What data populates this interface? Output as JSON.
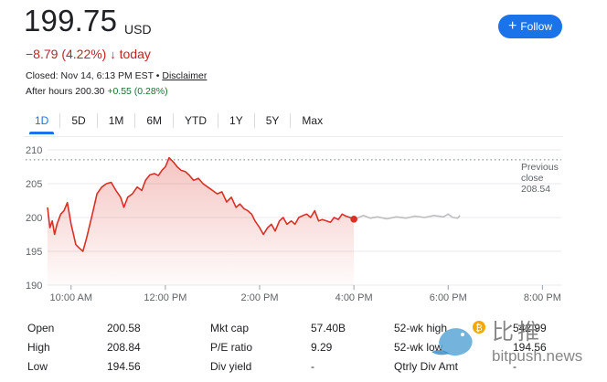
{
  "header": {
    "price": "199.75",
    "currency": "USD",
    "change": "−8.79 (4.22%)",
    "change_arrow": "↓",
    "change_period": "today",
    "closed_text": "Closed: Nov 14, 6:13 PM EST • ",
    "disclaimer": "Disclaimer",
    "after_hours_prefix": "After hours 200.30 ",
    "after_hours_change": "+0.55 (0.28%)",
    "follow_label": "Follow",
    "follow_icon": "plus-icon"
  },
  "tabs": [
    {
      "label": "1D",
      "active": true
    },
    {
      "label": "5D"
    },
    {
      "label": "1M"
    },
    {
      "label": "6M"
    },
    {
      "label": "YTD"
    },
    {
      "label": "1Y"
    },
    {
      "label": "5Y"
    },
    {
      "label": "Max"
    }
  ],
  "chart_data": {
    "type": "line",
    "ylim": [
      190,
      210
    ],
    "yticks": [
      "210",
      "205",
      "200",
      "195",
      "190"
    ],
    "xticks": [
      "10:00 AM",
      "12:00 PM",
      "2:00 PM",
      "4:00 PM",
      "6:00 PM",
      "8:00 PM"
    ],
    "previous_close": 208.54,
    "previous_close_label": [
      "Previous",
      "close",
      "208.54"
    ],
    "colors": {
      "regular": "#d93025",
      "after_hours": "#bdbdbd"
    },
    "series": [
      {
        "values": [
          [
            9.5,
            201.5
          ],
          [
            9.55,
            198.5
          ],
          [
            9.6,
            199.5
          ],
          [
            9.65,
            197.5
          ],
          [
            9.7,
            199.0
          ],
          [
            9.78,
            200.5
          ],
          [
            9.85,
            201.0
          ],
          [
            9.92,
            202.2
          ],
          [
            10.0,
            199.0
          ],
          [
            10.05,
            197.5
          ],
          [
            10.1,
            196.0
          ],
          [
            10.17,
            195.5
          ],
          [
            10.25,
            195.0
          ],
          [
            10.33,
            197.0
          ],
          [
            10.45,
            200.5
          ],
          [
            10.55,
            203.5
          ],
          [
            10.65,
            204.5
          ],
          [
            10.75,
            205.0
          ],
          [
            10.85,
            205.2
          ],
          [
            10.95,
            204.0
          ],
          [
            11.05,
            203.0
          ],
          [
            11.12,
            201.5
          ],
          [
            11.2,
            203.0
          ],
          [
            11.3,
            203.5
          ],
          [
            11.4,
            204.5
          ],
          [
            11.5,
            204.0
          ],
          [
            11.58,
            205.5
          ],
          [
            11.67,
            206.3
          ],
          [
            11.77,
            206.5
          ],
          [
            11.85,
            206.2
          ],
          [
            11.93,
            207.0
          ],
          [
            12.0,
            207.5
          ],
          [
            12.08,
            208.84
          ],
          [
            12.17,
            208.2
          ],
          [
            12.25,
            207.5
          ],
          [
            12.33,
            207.0
          ],
          [
            12.42,
            206.8
          ],
          [
            12.5,
            206.3
          ],
          [
            12.6,
            205.5
          ],
          [
            12.7,
            205.8
          ],
          [
            12.8,
            205.0
          ],
          [
            12.9,
            204.5
          ],
          [
            13.0,
            204.0
          ],
          [
            13.1,
            203.5
          ],
          [
            13.2,
            203.8
          ],
          [
            13.3,
            202.3
          ],
          [
            13.4,
            203.0
          ],
          [
            13.5,
            201.5
          ],
          [
            13.58,
            202.0
          ],
          [
            13.67,
            201.3
          ],
          [
            13.75,
            201.0
          ],
          [
            13.83,
            200.5
          ],
          [
            13.9,
            199.5
          ],
          [
            14.0,
            198.5
          ],
          [
            14.08,
            197.5
          ],
          [
            14.17,
            198.5
          ],
          [
            14.25,
            199.0
          ],
          [
            14.33,
            198.0
          ],
          [
            14.42,
            199.5
          ],
          [
            14.5,
            200.0
          ],
          [
            14.58,
            199.0
          ],
          [
            14.67,
            199.5
          ],
          [
            14.75,
            199.0
          ],
          [
            14.83,
            200.0
          ],
          [
            14.92,
            200.3
          ],
          [
            15.0,
            200.5
          ],
          [
            15.08,
            200.0
          ],
          [
            15.17,
            201.0
          ],
          [
            15.25,
            199.5
          ],
          [
            15.33,
            199.7
          ],
          [
            15.42,
            199.5
          ],
          [
            15.5,
            199.3
          ],
          [
            15.58,
            200.0
          ],
          [
            15.67,
            199.7
          ],
          [
            15.75,
            200.5
          ],
          [
            15.83,
            200.2
          ],
          [
            15.92,
            200.0
          ],
          [
            16.0,
            199.75
          ]
        ]
      },
      {
        "values": [
          [
            16.0,
            199.75
          ],
          [
            16.1,
            200.0
          ],
          [
            16.2,
            200.3
          ],
          [
            16.35,
            199.9
          ],
          [
            16.5,
            200.1
          ],
          [
            16.7,
            199.8
          ],
          [
            16.9,
            200.1
          ],
          [
            17.1,
            199.9
          ],
          [
            17.3,
            200.2
          ],
          [
            17.5,
            200.0
          ],
          [
            17.7,
            200.3
          ],
          [
            17.9,
            200.1
          ],
          [
            18.0,
            200.5
          ],
          [
            18.1,
            200.0
          ],
          [
            18.2,
            199.9
          ],
          [
            18.25,
            200.3
          ]
        ]
      }
    ]
  },
  "stats": {
    "col1": [
      {
        "label": "Open",
        "value": "200.58"
      },
      {
        "label": "High",
        "value": "208.84"
      },
      {
        "label": "Low",
        "value": "194.56"
      }
    ],
    "col2": [
      {
        "label": "Mkt cap",
        "value": "57.40B"
      },
      {
        "label": "P/E ratio",
        "value": "9.29"
      },
      {
        "label": "Div yield",
        "value": "-"
      }
    ],
    "col3": [
      {
        "label": "52-wk high",
        "value": "542.99"
      },
      {
        "label": "52-wk low",
        "value": "194.56"
      },
      {
        "label": "Qtrly Div Amt",
        "value": "-"
      }
    ]
  },
  "watermark": {
    "text1": "比推",
    "text2": "bitpush.news",
    "logo_icon": "bird-logo-icon",
    "coin_symbol": "₿"
  }
}
